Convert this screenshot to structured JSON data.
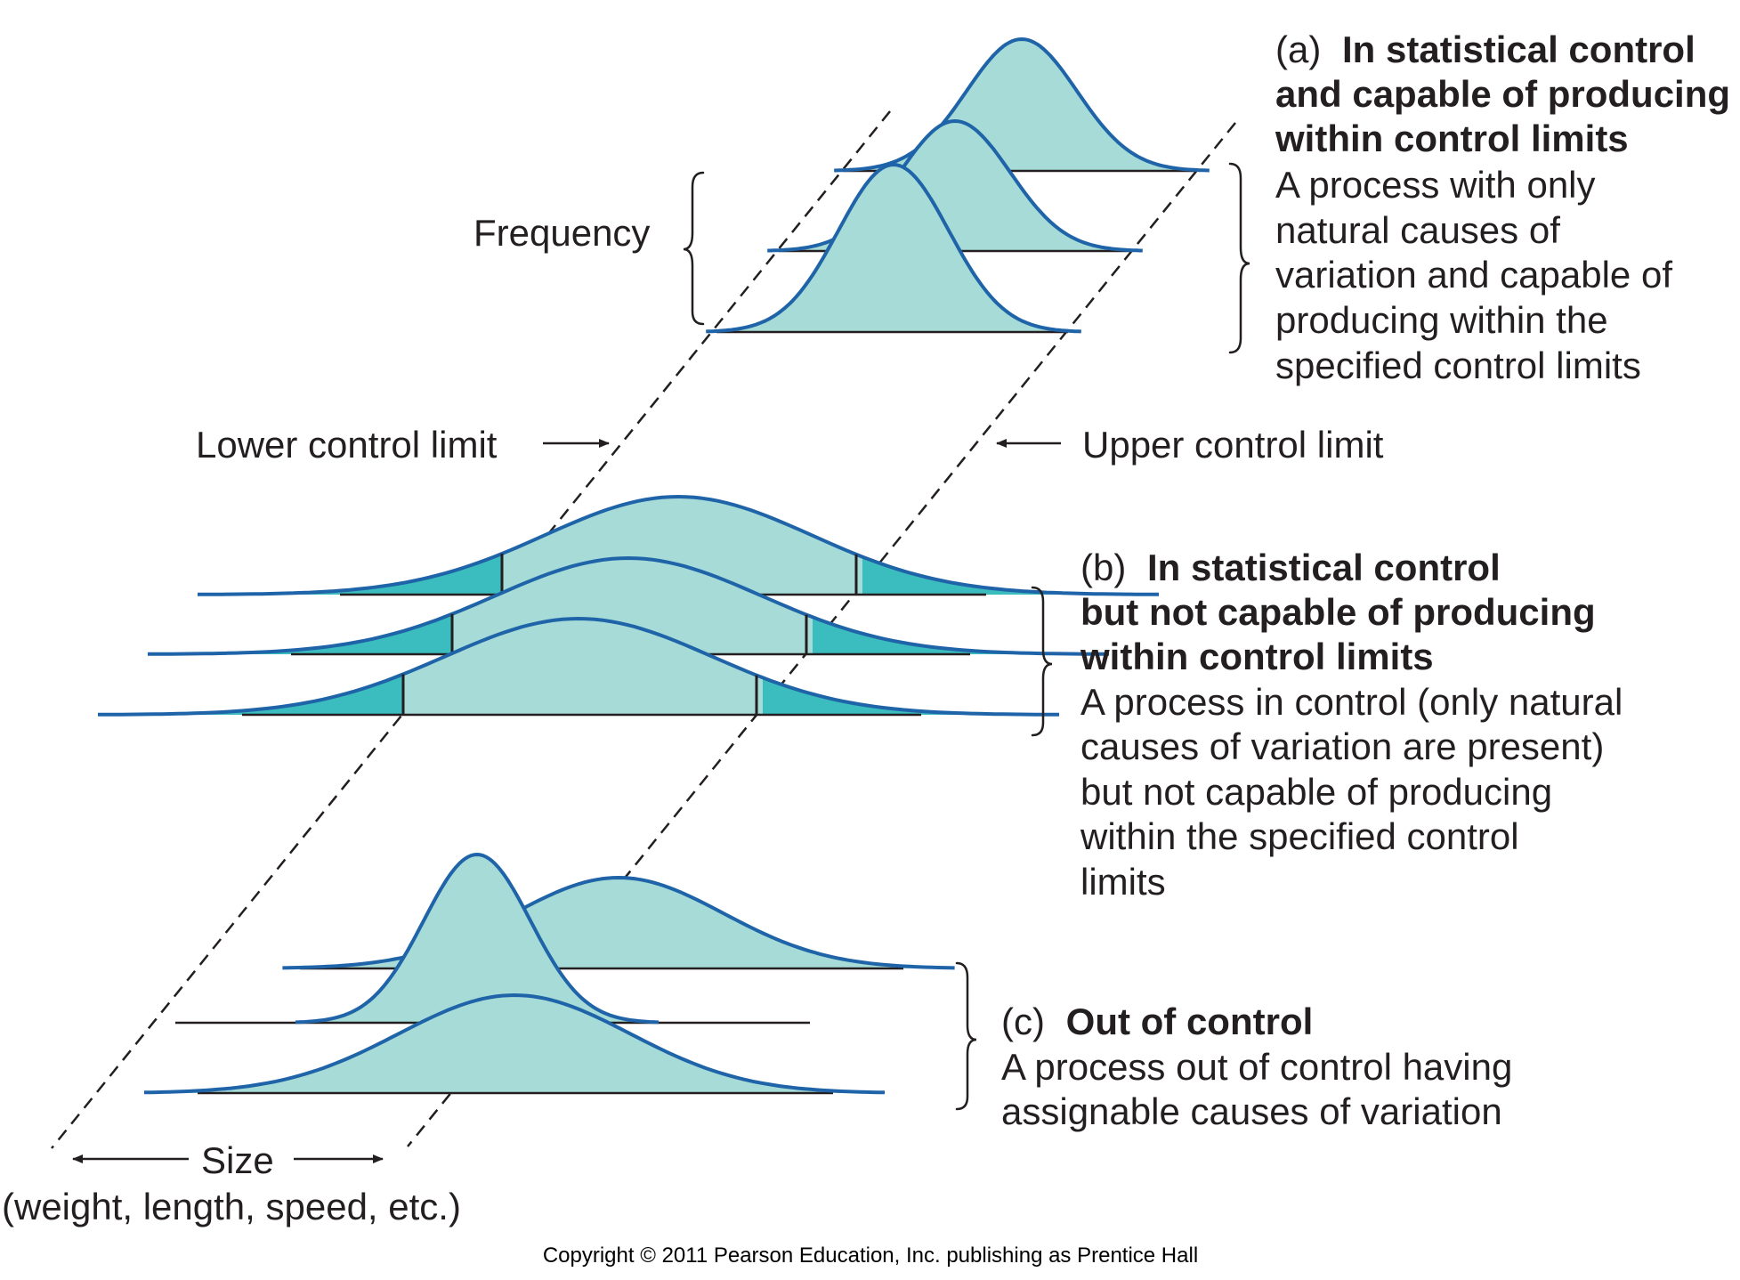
{
  "colors": {
    "fill": "#a6dbd7",
    "fill_tail": "#3bbdbf",
    "stroke": "#1f64a8",
    "text": "#231f20"
  },
  "labels": {
    "frequency": "Frequency",
    "lower_control_limit": "Lower control limit",
    "upper_control_limit": "Upper control limit",
    "size": "Size",
    "size_detail": "(weight, length, speed, etc.)",
    "copyright": "Copyright © 2011 Pearson Education, Inc. publishing as Prentice Hall"
  },
  "panels": {
    "a": {
      "tag": "(a)",
      "heading": [
        "In statistical control",
        "and capable of producing",
        "within control limits"
      ],
      "body": [
        "A process with only",
        "natural causes of",
        "variation and capable of",
        "producing within the",
        "specified control limits"
      ]
    },
    "b": {
      "tag": "(b)",
      "heading": [
        "In statistical control",
        "but not capable of producing",
        "within control limits"
      ],
      "body": [
        "A process in control (only natural",
        "causes of variation are present)",
        "but not capable of producing",
        "within the specified control",
        "limits"
      ]
    },
    "c": {
      "tag": "(c)",
      "heading": [
        "Out of control"
      ],
      "body": [
        "A process out of control having",
        "assignable causes of variation"
      ]
    }
  }
}
